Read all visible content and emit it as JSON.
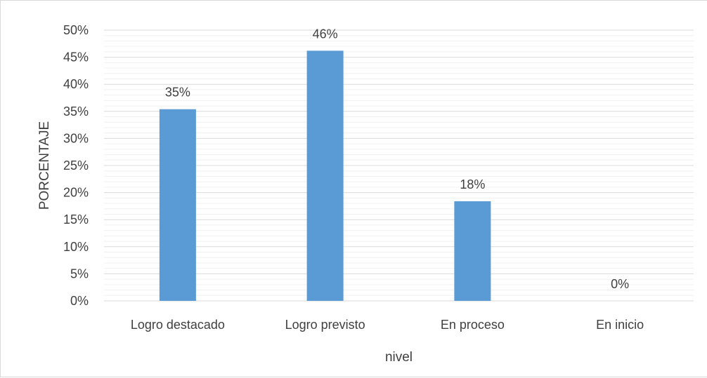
{
  "chart_data": {
    "type": "bar",
    "categories": [
      "Logro destacado",
      "Logro previsto",
      "En proceso",
      "En inicio"
    ],
    "values": [
      35.4,
      46.2,
      18.4,
      0
    ],
    "data_labels": [
      "35%",
      "46%",
      "18%",
      "0%"
    ],
    "title": "",
    "xlabel": "nivel",
    "ylabel": "PORCENTAJE",
    "ylim": [
      0,
      50
    ],
    "y_ticks": [
      0,
      5,
      10,
      15,
      20,
      25,
      30,
      35,
      40,
      45,
      50
    ],
    "y_tick_labels": [
      "0%",
      "5%",
      "10%",
      "15%",
      "20%",
      "25%",
      "30%",
      "35%",
      "40%",
      "45%",
      "50%"
    ],
    "grid": true,
    "legend": "none",
    "bar_color": "#5B9BD5",
    "grid_color": "#d9d9d9"
  }
}
